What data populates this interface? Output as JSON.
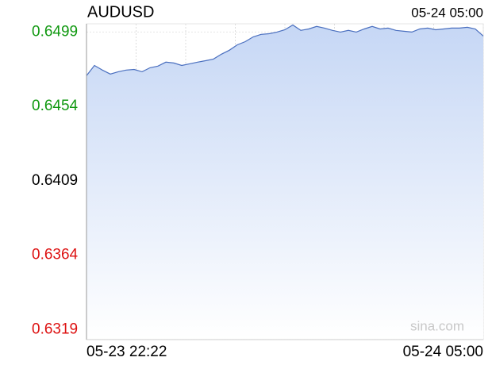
{
  "chart_data": {
    "type": "area",
    "title": "AUDUSD",
    "timestamp": "05-24 05:00",
    "watermark": "sina.com",
    "x_labels": [
      "05-23 22:22",
      "05-24 05:00"
    ],
    "values": [
      0.64726,
      0.64788,
      0.6476,
      0.64736,
      0.6475,
      0.6476,
      0.64764,
      0.6475,
      0.64774,
      0.64784,
      0.64808,
      0.64803,
      0.64788,
      0.64798,
      0.64808,
      0.64817,
      0.64827,
      0.64856,
      0.6488,
      0.64913,
      0.64932,
      0.64961,
      0.64976,
      0.6498,
      0.6499,
      0.65004,
      0.65033,
      0.65,
      0.65009,
      0.65024,
      0.65014,
      0.65,
      0.6499,
      0.65,
      0.6499,
      0.65009,
      0.65024,
      0.65009,
      0.65014,
      0.65,
      0.64995,
      0.6499,
      0.65009,
      0.65014,
      0.65004,
      0.65009,
      0.65014,
      0.65014,
      0.65019,
      0.65009,
      0.64966
    ],
    "color": "#4a6fbf",
    "fill_top": "#c6d7f5",
    "fill_bottom": "#ffffff",
    "ylim": [
      0.6313,
      0.6504
    ],
    "yticks": [
      0.6319,
      0.6364,
      0.6409,
      0.6454,
      0.6499
    ],
    "up_color": "#119911",
    "down_color": "#dd1111",
    "flat_color": "#000000",
    "grid": true
  }
}
